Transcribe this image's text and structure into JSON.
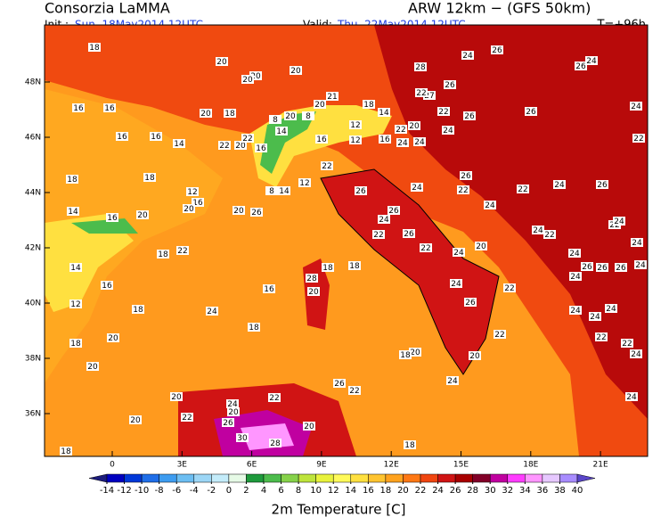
{
  "header": {
    "title": "Consorzia LaMMA",
    "model": "ARW 12km − (GFS 50km)",
    "init_label": "Init.:",
    "init": "Sun, 18May2014 12UTC",
    "valid_label": "Valid:",
    "valid": "Thu, 22May2014 12UTC",
    "lead": "T=+96h"
  },
  "map": {
    "lon_ticks": [
      0,
      {
        "value": 3,
        "label": "3E"
      },
      {
        "value": 6,
        "label": "6E"
      },
      {
        "value": 9,
        "label": "9E"
      },
      {
        "value": 12,
        "label": "12E"
      },
      {
        "value": 15,
        "label": "15E"
      },
      {
        "value": 18,
        "label": "18E"
      },
      {
        "value": 21,
        "label": "21E"
      }
    ],
    "lat_ticks": [
      {
        "value": 48,
        "label": "48N"
      },
      {
        "value": 46,
        "label": "46N"
      },
      {
        "value": 44,
        "label": "44N"
      },
      {
        "value": 42,
        "label": "42N"
      },
      {
        "value": 40,
        "label": "40N"
      },
      {
        "value": 38,
        "label": "38N"
      },
      {
        "value": 36,
        "label": "36N"
      }
    ],
    "station_values": [
      18,
      20,
      20,
      20,
      20,
      28,
      24,
      26,
      26,
      24,
      26,
      27,
      22,
      21,
      20,
      18,
      14,
      16,
      16,
      20,
      18,
      20,
      8,
      8,
      14,
      22,
      26,
      26,
      24,
      22,
      20,
      22,
      12,
      16,
      12,
      16,
      24,
      24,
      24,
      16,
      16,
      14,
      22,
      20,
      22,
      16,
      22,
      26,
      22,
      22,
      24,
      26,
      18,
      18,
      12,
      16,
      8,
      14,
      12,
      26,
      24,
      24,
      14,
      16,
      20,
      20,
      20,
      26,
      26,
      24,
      26,
      22,
      22,
      24,
      20,
      24,
      22,
      22,
      24,
      24,
      18,
      22,
      14,
      16,
      16,
      18,
      18,
      28,
      20,
      24,
      22,
      26,
      24,
      26,
      24,
      26,
      26,
      24,
      12,
      18,
      24,
      24,
      24,
      24,
      22,
      22,
      24,
      20,
      18,
      18,
      22,
      20,
      18,
      20,
      24,
      20,
      26,
      22,
      24,
      20,
      22,
      24,
      20,
      22,
      20,
      26,
      20,
      30,
      28,
      18,
      18
    ]
  },
  "colorbar": {
    "title": "2m Temperature [C]",
    "ticks": [
      -14,
      -12,
      -10,
      -8,
      -6,
      -4,
      -2,
      0,
      2,
      4,
      6,
      8,
      10,
      12,
      14,
      16,
      18,
      20,
      22,
      24,
      26,
      28,
      30,
      32,
      34,
      36,
      38,
      40
    ],
    "colors": [
      "#1c1c7c",
      "#0000c0",
      "#0038d8",
      "#1f6ee8",
      "#3d9cf0",
      "#6cbef2",
      "#9cd6f6",
      "#c4ecfa",
      "#e6fae6",
      "#1e9a3c",
      "#4cbc4c",
      "#86d24a",
      "#bee43c",
      "#e8f23c",
      "#fffa5a",
      "#ffe040",
      "#ffc430",
      "#ffa21e",
      "#ff7814",
      "#f04610",
      "#d01414",
      "#a80000",
      "#820028",
      "#c000a0",
      "#ff3cff",
      "#ff96ff",
      "#e6c8ff",
      "#a88cff",
      "#5a46c8"
    ]
  }
}
